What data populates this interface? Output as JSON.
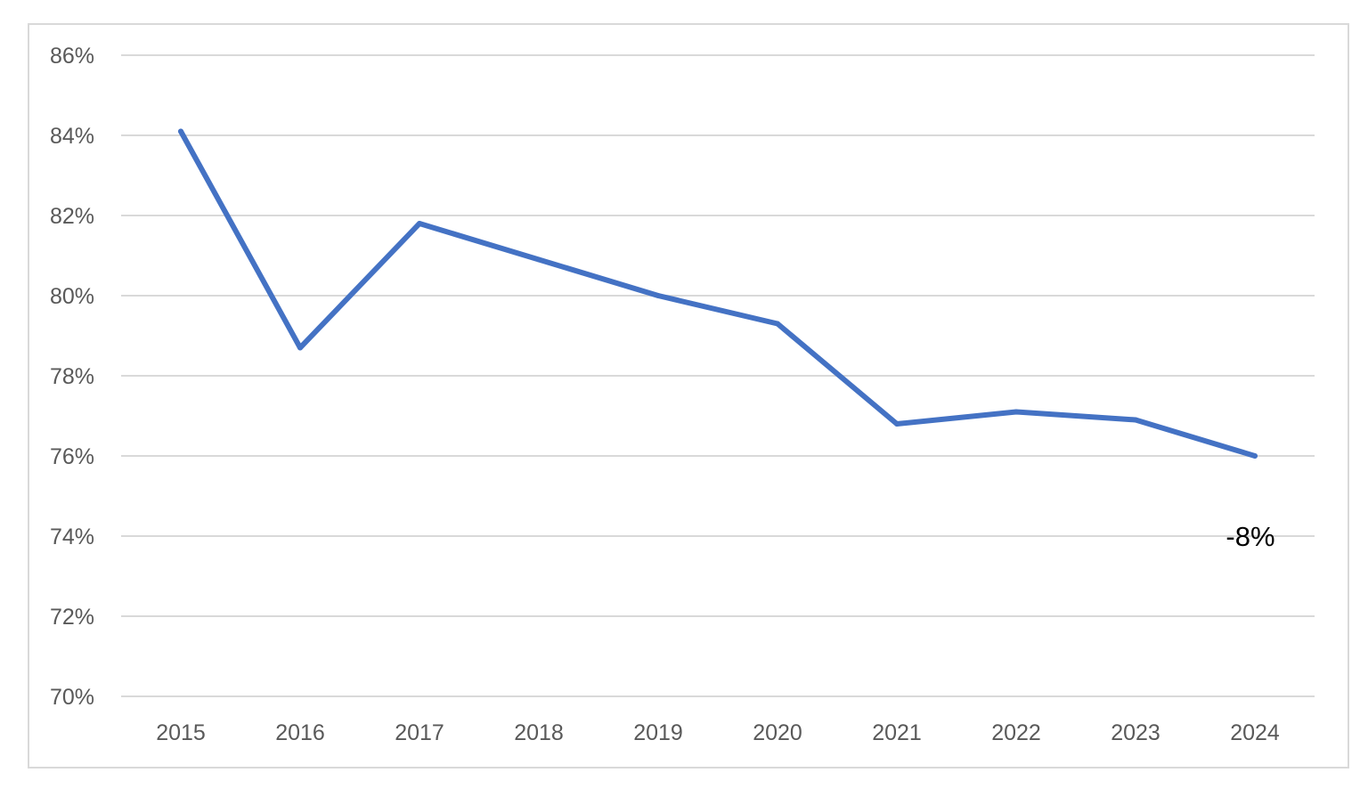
{
  "chart_data": {
    "type": "line",
    "title": "",
    "xlabel": "",
    "ylabel": "",
    "categories": [
      "2015",
      "2016",
      "2017",
      "2018",
      "2019",
      "2020",
      "2021",
      "2022",
      "2023",
      "2024"
    ],
    "series": [
      {
        "values": [
          84.1,
          78.7,
          81.8,
          80.9,
          80.0,
          79.3,
          76.8,
          77.1,
          76.9,
          76.0
        ],
        "color": "#4472c4"
      }
    ],
    "ylim": [
      70,
      86
    ],
    "y_ticks": [
      70,
      72,
      74,
      76,
      78,
      80,
      82,
      84,
      86
    ],
    "y_tick_labels": [
      "70%",
      "72%",
      "74%",
      "76%",
      "78%",
      "80%",
      "82%",
      "84%",
      "86%"
    ],
    "grid": true,
    "gridline_color": "#d9d9d9",
    "legend": "none",
    "annotations": [
      {
        "text": "-8%",
        "category": "2024",
        "y": 74
      }
    ]
  }
}
